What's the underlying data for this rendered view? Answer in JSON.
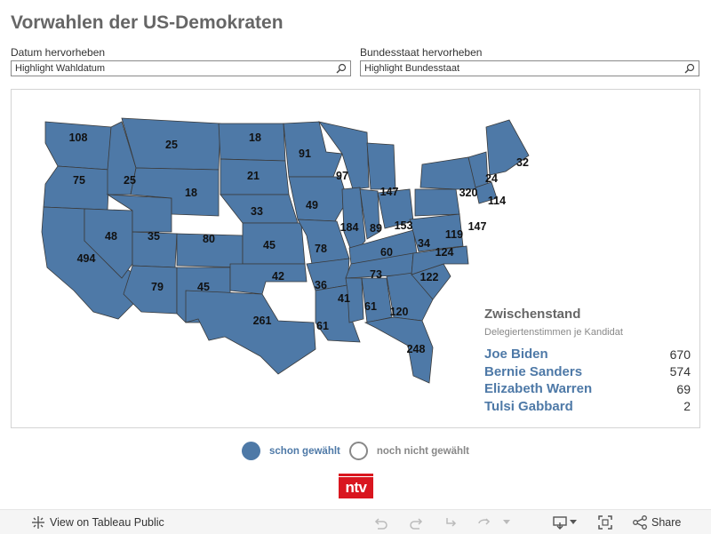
{
  "title": "Vorwahlen der US-Demokraten",
  "filters": {
    "date": {
      "label": "Datum hervorheben",
      "placeholder": "Highlight Wahldatum"
    },
    "state": {
      "label": "Bundesstaat hervorheben",
      "placeholder": "Highlight Bundesstaat"
    }
  },
  "map": {
    "state_color": "#4e79a7",
    "labels": [
      "108",
      "25",
      "18",
      "91",
      "32",
      "75",
      "25",
      "18",
      "21",
      "97",
      "147",
      "24",
      "320",
      "114",
      "33",
      "49",
      "184",
      "89",
      "153",
      "147",
      "48",
      "35",
      "80",
      "45",
      "78",
      "34",
      "119",
      "60",
      "124",
      "494",
      "42",
      "36",
      "73",
      "122",
      "79",
      "45",
      "41",
      "61",
      "120",
      "261",
      "61",
      "248"
    ]
  },
  "standings": {
    "heading": "Zwischenstand",
    "subheading": "Delegiertenstimmen je Kandidat",
    "candidates": [
      {
        "name": "Joe Biden",
        "value": "670"
      },
      {
        "name": "Bernie Sanders",
        "value": "574"
      },
      {
        "name": "Elizabeth Warren",
        "value": "69"
      },
      {
        "name": "Tulsi Gabbard",
        "value": "2"
      }
    ]
  },
  "legend": {
    "voted": "schon gewählt",
    "not_voted": "noch nicht gewählt"
  },
  "logo": "ntv",
  "toolbar": {
    "view_label": "View on Tableau Public",
    "share_label": "Share"
  }
}
